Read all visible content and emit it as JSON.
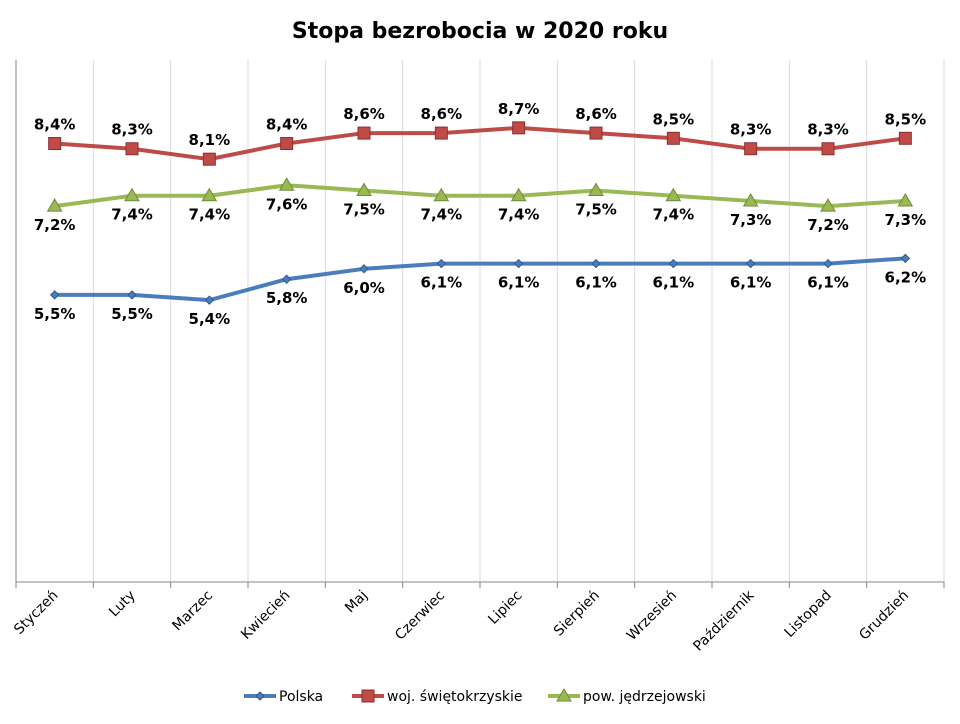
{
  "chart_data": {
    "type": "line",
    "title": "Stopa bezrobocia w 2020 roku",
    "xlabel": "",
    "ylabel": "",
    "ylim": [
      0,
      10
    ],
    "grid": "vertical",
    "legend_position": "bottom",
    "categories": [
      "Styczeń",
      "Luty",
      "Marzec",
      "Kwiecień",
      "Maj",
      "Czerwiec",
      "Lipiec",
      "Sierpień",
      "Wrzesień",
      "Październik",
      "Listopad",
      "Grudzień"
    ],
    "series": [
      {
        "name": "Polska",
        "color": "#4a7ebb",
        "marker": "diamond",
        "label_pos": "below",
        "values": [
          5.5,
          5.5,
          5.4,
          5.8,
          6.0,
          6.1,
          6.1,
          6.1,
          6.1,
          6.1,
          6.1,
          6.2
        ],
        "labels": [
          "5,5%",
          "5,5%",
          "5,4%",
          "5,8%",
          "6,0%",
          "6,1%",
          "6,1%",
          "6,1%",
          "6,1%",
          "6,1%",
          "6,1%",
          "6,2%"
        ]
      },
      {
        "name": "woj. świętokrzyskie",
        "color": "#be4b48",
        "marker": "square",
        "label_pos": "above",
        "values": [
          8.4,
          8.3,
          8.1,
          8.4,
          8.6,
          8.6,
          8.7,
          8.6,
          8.5,
          8.3,
          8.3,
          8.5
        ],
        "labels": [
          "8,4%",
          "8,3%",
          "8,1%",
          "8,4%",
          "8,6%",
          "8,6%",
          "8,7%",
          "8,6%",
          "8,5%",
          "8,3%",
          "8,3%",
          "8,5%"
        ]
      },
      {
        "name": "pow. jędrzejowski",
        "color": "#98b954",
        "marker": "triangle",
        "label_pos": "below",
        "values": [
          7.2,
          7.4,
          7.4,
          7.6,
          7.5,
          7.4,
          7.4,
          7.5,
          7.4,
          7.3,
          7.2,
          7.3
        ],
        "labels": [
          "7,2%",
          "7,4%",
          "7,4%",
          "7,6%",
          "7,5%",
          "7,4%",
          "7,4%",
          "7,5%",
          "7,4%",
          "7,3%",
          "7,2%",
          "7,3%"
        ]
      }
    ]
  }
}
